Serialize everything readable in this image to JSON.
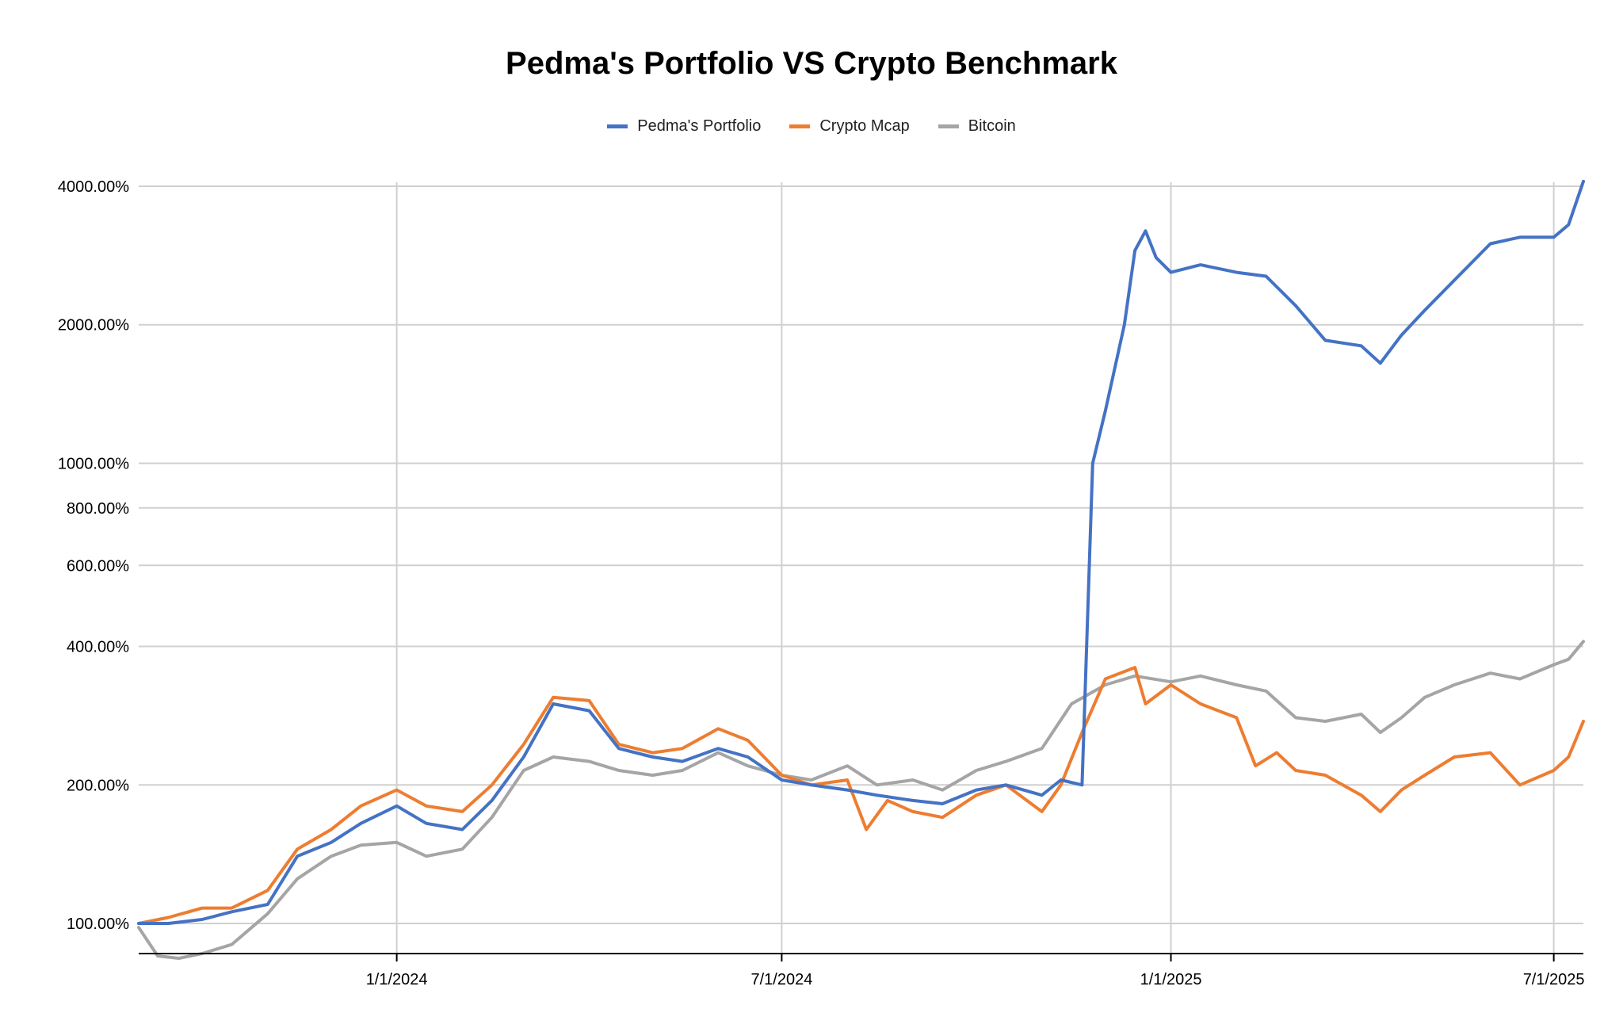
{
  "chart_data": {
    "type": "line",
    "title": "Pedma's Portfolio VS Crypto Benchmark",
    "xlabel": "",
    "ylabel": "",
    "y_scale": "log",
    "ylim": [
      80,
      4200
    ],
    "x_range": [
      "2023-09-01",
      "2025-07-15"
    ],
    "yticks": [
      {
        "value": 100,
        "label": "100.00%"
      },
      {
        "value": 200,
        "label": "200.00%"
      },
      {
        "value": 400,
        "label": "400.00%"
      },
      {
        "value": 600,
        "label": "600.00%"
      },
      {
        "value": 800,
        "label": "800.00%"
      },
      {
        "value": 1000,
        "label": "1000.00%"
      },
      {
        "value": 2000,
        "label": "2000.00%"
      },
      {
        "value": 4000,
        "label": "4000.00%"
      }
    ],
    "xticks": [
      {
        "date": "2024-01-01",
        "label": "1/1/2024"
      },
      {
        "date": "2024-07-01",
        "label": "7/1/2024"
      },
      {
        "date": "2025-01-01",
        "label": "1/1/2025"
      },
      {
        "date": "2025-07-01",
        "label": "7/1/2025"
      }
    ],
    "legend_position": "top-center",
    "series": [
      {
        "name": "Pedma's Portfolio",
        "color": "#4472C4",
        "points": [
          [
            "2023-09-01",
            100
          ],
          [
            "2023-09-15",
            100
          ],
          [
            "2023-10-01",
            102
          ],
          [
            "2023-10-15",
            106
          ],
          [
            "2023-11-01",
            110
          ],
          [
            "2023-11-15",
            140
          ],
          [
            "2023-12-01",
            150
          ],
          [
            "2023-12-15",
            165
          ],
          [
            "2024-01-01",
            180
          ],
          [
            "2024-01-15",
            165
          ],
          [
            "2024-02-01",
            160
          ],
          [
            "2024-02-15",
            185
          ],
          [
            "2024-03-01",
            230
          ],
          [
            "2024-03-15",
            300
          ],
          [
            "2024-04-01",
            290
          ],
          [
            "2024-04-15",
            240
          ],
          [
            "2024-05-01",
            230
          ],
          [
            "2024-05-15",
            225
          ],
          [
            "2024-06-01",
            240
          ],
          [
            "2024-06-15",
            230
          ],
          [
            "2024-07-01",
            205
          ],
          [
            "2024-07-15",
            200
          ],
          [
            "2024-08-01",
            195
          ],
          [
            "2024-08-15",
            190
          ],
          [
            "2024-09-01",
            185
          ],
          [
            "2024-09-15",
            182
          ],
          [
            "2024-10-01",
            195
          ],
          [
            "2024-10-15",
            200
          ],
          [
            "2024-11-01",
            190
          ],
          [
            "2024-11-10",
            205
          ],
          [
            "2024-11-20",
            200
          ],
          [
            "2024-11-25",
            1000
          ],
          [
            "2024-12-01",
            1300
          ],
          [
            "2024-12-10",
            2000
          ],
          [
            "2024-12-15",
            2900
          ],
          [
            "2024-12-20",
            3200
          ],
          [
            "2024-12-25",
            2800
          ],
          [
            "2025-01-01",
            2600
          ],
          [
            "2025-01-15",
            2700
          ],
          [
            "2025-02-01",
            2600
          ],
          [
            "2025-02-15",
            2550
          ],
          [
            "2025-03-01",
            2200
          ],
          [
            "2025-03-15",
            1850
          ],
          [
            "2025-04-01",
            1800
          ],
          [
            "2025-04-10",
            1650
          ],
          [
            "2025-04-20",
            1900
          ],
          [
            "2025-05-01",
            2150
          ],
          [
            "2025-05-15",
            2500
          ],
          [
            "2025-06-01",
            3000
          ],
          [
            "2025-06-15",
            3100
          ],
          [
            "2025-07-01",
            3100
          ],
          [
            "2025-07-08",
            3300
          ],
          [
            "2025-07-15",
            4100
          ]
        ]
      },
      {
        "name": "Crypto Mcap",
        "color": "#ED7D31",
        "points": [
          [
            "2023-09-01",
            100
          ],
          [
            "2023-09-15",
            103
          ],
          [
            "2023-10-01",
            108
          ],
          [
            "2023-10-15",
            108
          ],
          [
            "2023-11-01",
            118
          ],
          [
            "2023-11-15",
            145
          ],
          [
            "2023-12-01",
            160
          ],
          [
            "2023-12-15",
            180
          ],
          [
            "2024-01-01",
            195
          ],
          [
            "2024-01-15",
            180
          ],
          [
            "2024-02-01",
            175
          ],
          [
            "2024-02-15",
            200
          ],
          [
            "2024-03-01",
            245
          ],
          [
            "2024-03-15",
            310
          ],
          [
            "2024-04-01",
            305
          ],
          [
            "2024-04-15",
            245
          ],
          [
            "2024-05-01",
            235
          ],
          [
            "2024-05-15",
            240
          ],
          [
            "2024-06-01",
            265
          ],
          [
            "2024-06-15",
            250
          ],
          [
            "2024-07-01",
            210
          ],
          [
            "2024-07-15",
            200
          ],
          [
            "2024-08-01",
            205
          ],
          [
            "2024-08-10",
            160
          ],
          [
            "2024-08-20",
            185
          ],
          [
            "2024-09-01",
            175
          ],
          [
            "2024-09-15",
            170
          ],
          [
            "2024-10-01",
            190
          ],
          [
            "2024-10-15",
            200
          ],
          [
            "2024-11-01",
            175
          ],
          [
            "2024-11-10",
            200
          ],
          [
            "2024-11-20",
            260
          ],
          [
            "2024-12-01",
            340
          ],
          [
            "2024-12-15",
            360
          ],
          [
            "2024-12-20",
            300
          ],
          [
            "2025-01-01",
            330
          ],
          [
            "2025-01-15",
            300
          ],
          [
            "2025-02-01",
            280
          ],
          [
            "2025-02-10",
            220
          ],
          [
            "2025-02-20",
            235
          ],
          [
            "2025-03-01",
            215
          ],
          [
            "2025-03-15",
            210
          ],
          [
            "2025-04-01",
            190
          ],
          [
            "2025-04-10",
            175
          ],
          [
            "2025-04-20",
            195
          ],
          [
            "2025-05-01",
            210
          ],
          [
            "2025-05-15",
            230
          ],
          [
            "2025-06-01",
            235
          ],
          [
            "2025-06-15",
            200
          ],
          [
            "2025-07-01",
            215
          ],
          [
            "2025-07-08",
            230
          ],
          [
            "2025-07-15",
            275
          ]
        ]
      },
      {
        "name": "Bitcoin",
        "color": "#A5A5A5",
        "points": [
          [
            "2023-09-01",
            98
          ],
          [
            "2023-09-10",
            85
          ],
          [
            "2023-09-20",
            84
          ],
          [
            "2023-10-01",
            86
          ],
          [
            "2023-10-15",
            90
          ],
          [
            "2023-11-01",
            105
          ],
          [
            "2023-11-15",
            125
          ],
          [
            "2023-12-01",
            140
          ],
          [
            "2023-12-15",
            148
          ],
          [
            "2024-01-01",
            150
          ],
          [
            "2024-01-15",
            140
          ],
          [
            "2024-02-01",
            145
          ],
          [
            "2024-02-15",
            170
          ],
          [
            "2024-03-01",
            215
          ],
          [
            "2024-03-15",
            230
          ],
          [
            "2024-04-01",
            225
          ],
          [
            "2024-04-15",
            215
          ],
          [
            "2024-05-01",
            210
          ],
          [
            "2024-05-15",
            215
          ],
          [
            "2024-06-01",
            235
          ],
          [
            "2024-06-15",
            220
          ],
          [
            "2024-07-01",
            210
          ],
          [
            "2024-07-15",
            205
          ],
          [
            "2024-08-01",
            220
          ],
          [
            "2024-08-15",
            200
          ],
          [
            "2024-09-01",
            205
          ],
          [
            "2024-09-15",
            195
          ],
          [
            "2024-10-01",
            215
          ],
          [
            "2024-10-15",
            225
          ],
          [
            "2024-11-01",
            240
          ],
          [
            "2024-11-15",
            300
          ],
          [
            "2024-12-01",
            330
          ],
          [
            "2024-12-15",
            345
          ],
          [
            "2025-01-01",
            335
          ],
          [
            "2025-01-15",
            345
          ],
          [
            "2025-02-01",
            330
          ],
          [
            "2025-02-15",
            320
          ],
          [
            "2025-03-01",
            280
          ],
          [
            "2025-03-15",
            275
          ],
          [
            "2025-04-01",
            285
          ],
          [
            "2025-04-10",
            260
          ],
          [
            "2025-04-20",
            280
          ],
          [
            "2025-05-01",
            310
          ],
          [
            "2025-05-15",
            330
          ],
          [
            "2025-06-01",
            350
          ],
          [
            "2025-06-15",
            340
          ],
          [
            "2025-07-01",
            365
          ],
          [
            "2025-07-08",
            375
          ],
          [
            "2025-07-15",
            410
          ]
        ]
      }
    ]
  }
}
